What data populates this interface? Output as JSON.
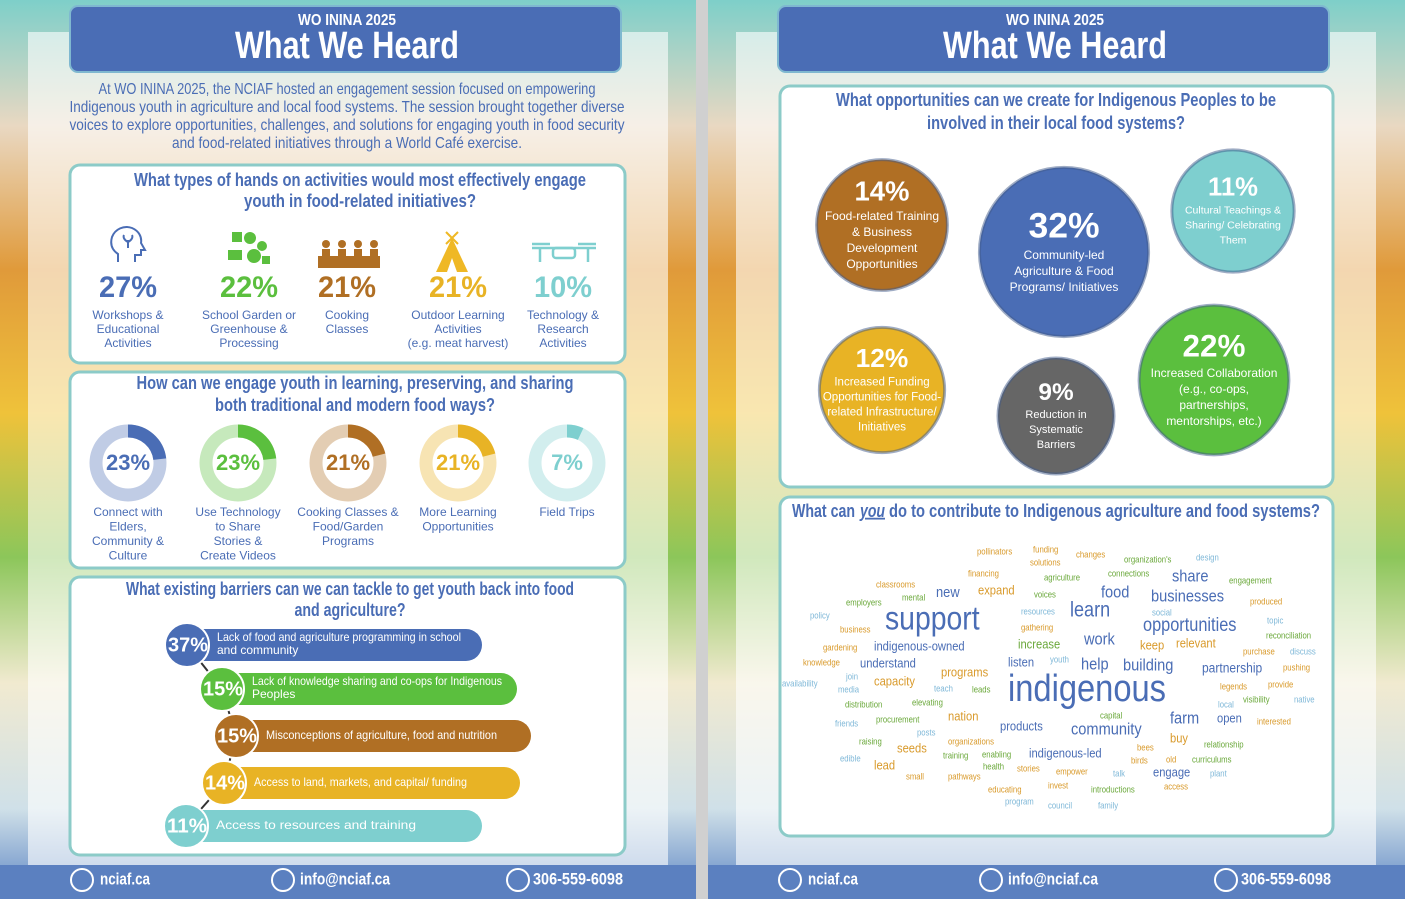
{
  "pages": [
    {
      "header": {
        "kicker": "WO ININA 2025",
        "title": "What We Heard"
      },
      "intro": [
        "At WO ININA 2025, the NCIAF hosted an engagement session focused on empowering",
        "Indigenous youth in agriculture and local food systems. The session brought together diverse",
        "voices to explore opportunities, challenges, and solutions for engaging youth in food security",
        "and food-related initiatives through a World Café exercise."
      ],
      "activities": {
        "question": [
          "What types of hands on activities would most effectively engage",
          "youth in food-related initiatives?"
        ],
        "items": [
          {
            "percent": "27%",
            "label": [
              "Workshops &",
              "Educational",
              "Activities"
            ]
          },
          {
            "percent": "22%",
            "label": [
              "School Garden or",
              "Greenhouse &",
              "Processing"
            ]
          },
          {
            "percent": "21%",
            "label": [
              "Cooking",
              "Classes"
            ]
          },
          {
            "percent": "21%",
            "label": [
              "Outdoor Learning",
              "Activities",
              "(e.g. meat harvest)"
            ]
          },
          {
            "percent": "10%",
            "label": [
              "Technology &",
              "Research",
              "Activities"
            ]
          }
        ]
      },
      "engagement": {
        "question": [
          "How can we engage youth in learning, preserving, and sharing",
          "both traditional and modern food ways?"
        ],
        "items": [
          {
            "share": {
              "value": 23,
              "label": "23%"
            },
            "label": [
              "Connect with",
              "Elders,",
              "Community &",
              "Culture"
            ]
          },
          {
            "share": {
              "value": 23,
              "label": "23%"
            },
            "label": [
              "Use Technology",
              "to Share",
              "Stories &",
              "Create Videos"
            ]
          },
          {
            "share": {
              "value": 21,
              "label": "21%"
            },
            "label": [
              "Cooking Classes &",
              "Food/Garden",
              "Programs"
            ]
          },
          {
            "share": {
              "value": 21,
              "label": "21%"
            },
            "label": [
              "More Learning",
              "Opportunities"
            ]
          },
          {
            "share": {
              "value": 7,
              "label": "7%"
            },
            "label": [
              "Field Trips"
            ]
          }
        ]
      },
      "barriers": {
        "question": [
          "What existing barriers can we can tackle to get youth back into food",
          "and agriculture?"
        ],
        "items": [
          {
            "percent": "37%",
            "label": [
              "Lack of food and agriculture programming in school",
              "and community"
            ]
          },
          {
            "percent": "15%",
            "label": [
              "Lack of knowledge sharing and co-ops for Indigenous",
              "Peoples"
            ]
          },
          {
            "percent": "15%",
            "label": [
              "Misconceptions of agriculture, food and nutrition"
            ]
          },
          {
            "percent": "14%",
            "label": [
              "Access to land, markets, and capital/ funding"
            ]
          },
          {
            "percent": "11%",
            "label": [
              "Access to resources and training"
            ]
          }
        ]
      },
      "footer": {
        "website": "nciaf.ca",
        "email": "info@nciaf.ca",
        "phone": "306-559-6098"
      }
    },
    {
      "header": {
        "kicker": "WO ININA 2025",
        "title": "What We Heard"
      },
      "opportunities": {
        "question": [
          "What opportunities can we create for Indigenous Peoples to be",
          "involved in their local food systems?"
        ],
        "items": [
          {
            "share": {
              "value": 14,
              "label": "14%"
            },
            "label": [
              "Food-related Training",
              "& Business",
              "Development",
              "Opportunities"
            ]
          },
          {
            "share": {
              "value": 32,
              "label": "32%"
            },
            "label": [
              "Community-led",
              "Agriculture & Food",
              "Programs/ Initiatives"
            ]
          },
          {
            "share": {
              "value": 11,
              "label": "11%"
            },
            "label": [
              "Cultural Teachings &",
              "Sharing/ Celebrating",
              "Them"
            ]
          },
          {
            "share": {
              "value": 12,
              "label": "12%"
            },
            "label": [
              "Increased Funding",
              "Opportunities for Food-",
              "related Infrastructure/",
              "Initiatives"
            ]
          },
          {
            "share": {
              "value": 9,
              "label": "9%"
            },
            "label": [
              "Reduction in",
              "Systematic",
              "Barriers"
            ]
          },
          {
            "share": {
              "value": 22,
              "label": "22%"
            },
            "label": [
              "Increased Collaboration",
              "(e.g., co-ops,",
              "partnerships,",
              "mentorships, etc.)"
            ]
          }
        ]
      },
      "contribute": {
        "question": [
          "What can",
          "you",
          "do to contribute to Indigenous agriculture and food systems?"
        ],
        "words": [
          "pollinators",
          "funding",
          "changes",
          "organization's",
          "design",
          "solutions",
          "financing",
          "agriculture",
          "connections",
          "share",
          "engagement",
          "classrooms",
          "expand",
          "voices",
          "food",
          "new",
          "mental",
          "businesses",
          "employers",
          "produced",
          "learn",
          "resources",
          "social",
          "policy",
          "support",
          "topic",
          "opportunities",
          "business",
          "gathering",
          "reconciliation",
          "work",
          "increase",
          "keep",
          "relevant",
          "gardening",
          "indigenous-owned",
          "purchase",
          "discuss",
          "understand",
          "listen",
          "youth",
          "help",
          "building",
          "partnership",
          "pushing",
          "knowledge",
          "programs",
          "join",
          "indigenous",
          "legends",
          "provide",
          "capacity",
          "availability",
          "teach",
          "media",
          "leads",
          "visibility",
          "native",
          "distribution",
          "elevating",
          "local",
          "capital",
          "nation",
          "farm",
          "open",
          "interested",
          "friends",
          "procurement",
          "products",
          "community",
          "posts",
          "buy",
          "raising",
          "organizations",
          "bees",
          "relationship",
          "seeds",
          "training",
          "enabling",
          "indigenous-led",
          "edible",
          "birds",
          "old",
          "curriculums",
          "lead",
          "health",
          "stories",
          "empower",
          "talk",
          "engage",
          "plant",
          "small",
          "pathways",
          "invest",
          "access",
          "educating",
          "introductions",
          "program",
          "council",
          "family"
        ]
      },
      "footer": {
        "website": "nciaf.ca",
        "email": "info@nciaf.ca",
        "phone": "306-559-6098"
      }
    }
  ]
}
